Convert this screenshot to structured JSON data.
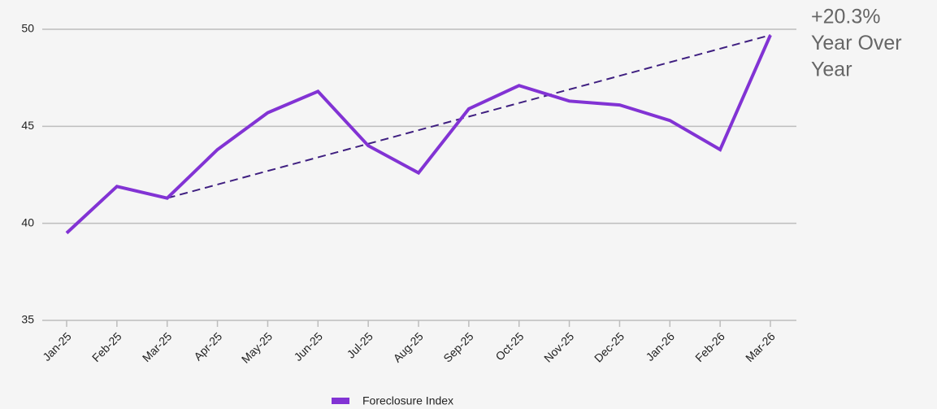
{
  "chart_data": {
    "type": "line",
    "categories": [
      "Jan-25",
      "Feb-25",
      "Mar-25",
      "Apr-25",
      "May-25",
      "Jun-25",
      "Jul-25",
      "Aug-25",
      "Sep-25",
      "Oct-25",
      "Nov-25",
      "Dec-25",
      "Jan-26",
      "Feb-26",
      "Mar-26"
    ],
    "series": [
      {
        "name": "Foreclosure Index",
        "color": "#8233d4",
        "values": [
          39.5,
          41.9,
          41.3,
          43.8,
          45.7,
          46.8,
          44.0,
          42.6,
          45.9,
          47.1,
          46.3,
          46.1,
          45.3,
          43.8,
          49.7
        ]
      }
    ],
    "trend": {
      "color": "#3f1f80",
      "dashed": true,
      "categories": [
        "Mar-25",
        "Mar-26"
      ],
      "values": [
        41.3,
        49.7
      ]
    },
    "annotation": [
      "+20.3%",
      "Year Over",
      "Year"
    ],
    "ylim": [
      35,
      50
    ],
    "yticks": [
      35,
      40,
      45,
      50
    ],
    "grid": true,
    "legend": "bottom"
  }
}
